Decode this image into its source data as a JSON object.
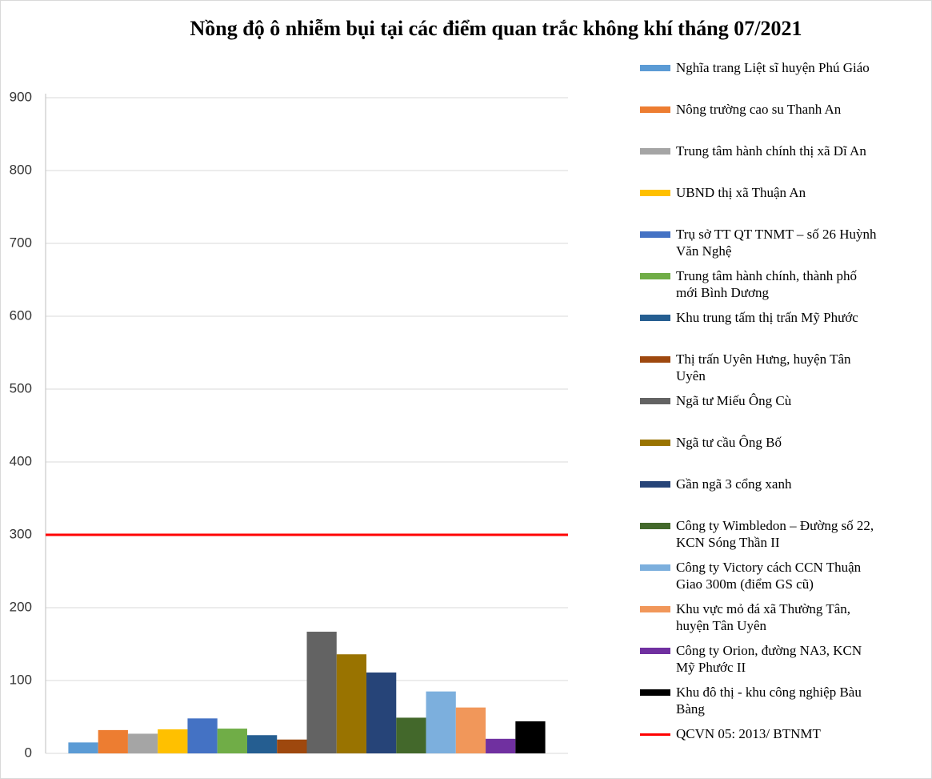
{
  "chart_data": {
    "type": "bar",
    "title": "Nồng độ ô nhiễm bụi tại các điểm quan trắc không khí tháng 07/2021",
    "categories": [
      null
    ],
    "series": [
      {
        "name": "Nghĩa trang Liệt sĩ huyện Phú Giáo",
        "color": "#5b9bd5",
        "values": [
          15
        ]
      },
      {
        "name": "Nông trường cao su Thanh An",
        "color": "#ed7d31",
        "values": [
          32
        ]
      },
      {
        "name": "Trung tâm hành chính thị xã Dĩ An",
        "color": "#a5a5a5",
        "values": [
          27
        ]
      },
      {
        "name": "UBND thị xã Thuận An",
        "color": "#ffc000",
        "values": [
          33
        ]
      },
      {
        "name": "Trụ sở TT QT TNMT – số 26 Huỳnh Văn Nghệ",
        "color": "#4472c4",
        "values": [
          48
        ]
      },
      {
        "name": "Trung tâm hành chính, thành phố mới Bình Dương",
        "color": "#70ad47",
        "values": [
          34
        ]
      },
      {
        "name": "Khu trung tấm thị trấn Mỹ Phước",
        "color": "#255e91",
        "values": [
          25
        ]
      },
      {
        "name": "Thị trấn Uyên Hưng, huyện Tân Uyên",
        "color": "#9e480e",
        "values": [
          19
        ]
      },
      {
        "name": "Ngã tư Miếu Ông Cù",
        "color": "#636363",
        "values": [
          167
        ]
      },
      {
        "name": "Ngã tư cầu Ông Bố",
        "color": "#997300",
        "values": [
          136
        ]
      },
      {
        "name": "Gần ngã 3 cổng xanh",
        "color": "#264478",
        "values": [
          111
        ]
      },
      {
        "name": "Công ty Wimbledon – Đường số 22, KCN Sóng Thần II",
        "color": "#43682b",
        "values": [
          49
        ]
      },
      {
        "name": "Công ty Victory cách CCN Thuận Giao 300m (điểm GS cũ)",
        "color": "#7cafdd",
        "values": [
          85
        ]
      },
      {
        "name": "Khu vực mỏ đá xã Thường Tân, huyện Tân Uyên",
        "color": "#f1975a",
        "values": [
          63
        ]
      },
      {
        "name": "Công ty Orion, đường NA3, KCN Mỹ Phước II",
        "color": "#7030a0",
        "values": [
          20
        ]
      },
      {
        "name": "Khu đô thị - khu công nghiệp Bàu Bàng",
        "color": "#000000",
        "values": [
          44
        ]
      }
    ],
    "reference_line": {
      "name": "QCVN 05: 2013/ BTNMT",
      "value": 300,
      "color": "#ff0000"
    },
    "ylim": [
      0,
      900
    ],
    "yticks": [
      0,
      100,
      200,
      300,
      400,
      500,
      600,
      700,
      800,
      900
    ],
    "grid": true,
    "legend": "right"
  }
}
